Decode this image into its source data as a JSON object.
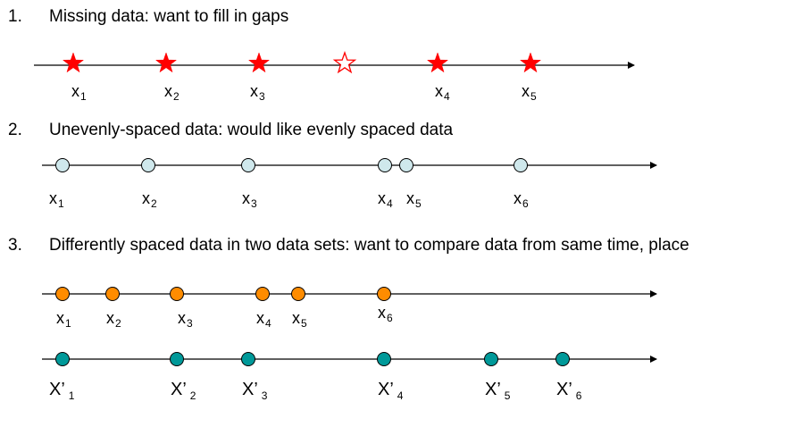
{
  "colors": {
    "axis": "#000000",
    "star_fill": "#ff0000",
    "star_outline": "#ff0000",
    "light_circle": "#cfe8ec",
    "orange_circle": "#ff8c00",
    "teal_circle": "#009999",
    "circle_stroke": "#000000"
  },
  "section1": {
    "number": "1.",
    "text": "Missing data:  want to fill in gaps",
    "labels": [
      {
        "base": "x",
        "sub": "1"
      },
      {
        "base": "x",
        "sub": "2"
      },
      {
        "base": "x",
        "sub": "3"
      },
      {
        "base": "x",
        "sub": "4"
      },
      {
        "base": "x",
        "sub": "5"
      }
    ],
    "markers": [
      "filled-star",
      "filled-star",
      "filled-star",
      "hollow-star",
      "filled-star",
      "filled-star"
    ]
  },
  "section2": {
    "number": "2.",
    "text": "Unevenly-spaced data:  would like evenly spaced data",
    "labels": [
      {
        "base": "x",
        "sub": "1"
      },
      {
        "base": "x",
        "sub": "2"
      },
      {
        "base": "x",
        "sub": "3"
      },
      {
        "base": "x",
        "sub": "4"
      },
      {
        "base": "x",
        "sub": "5"
      },
      {
        "base": "x",
        "sub": "6"
      }
    ]
  },
  "section3": {
    "number": "3.",
    "text": "Differently spaced data in two data sets:  want to compare data from same time, place",
    "series_a_labels": [
      {
        "base": "x",
        "sub": "1"
      },
      {
        "base": "x",
        "sub": "2"
      },
      {
        "base": "x",
        "sub": "3"
      },
      {
        "base": "x",
        "sub": "4"
      },
      {
        "base": "x",
        "sub": "5"
      },
      {
        "base": "x",
        "sub": "6"
      }
    ],
    "series_b_labels": [
      {
        "base": "X’",
        "sub": "1"
      },
      {
        "base": "X’",
        "sub": "2"
      },
      {
        "base": "X’",
        "sub": "3"
      },
      {
        "base": "X’",
        "sub": "4"
      },
      {
        "base": "X’",
        "sub": "5"
      },
      {
        "base": "X’",
        "sub": "6"
      }
    ]
  }
}
